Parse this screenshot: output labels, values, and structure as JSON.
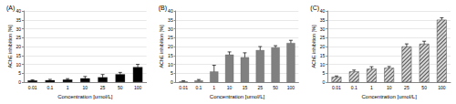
{
  "chart_data": [
    {
      "type": "bar",
      "title": "(A)",
      "categories": [
        "0.01",
        "0.1",
        "1",
        "10",
        "25",
        "50",
        "100"
      ],
      "values": [
        1.0,
        1.2,
        1.5,
        2.2,
        2.8,
        4.5,
        8.5
      ],
      "errors": [
        0.3,
        0.4,
        0.5,
        1.0,
        1.5,
        1.0,
        1.5
      ],
      "color": "#000000",
      "marker": "solid",
      "x_label": "Concentration [umol/L]",
      "y_label": "AChE inhibition [%]",
      "ylim": [
        0,
        40
      ],
      "yticks": [
        0,
        5,
        10,
        15,
        20,
        25,
        30,
        35,
        40
      ],
      "grid": true
    },
    {
      "type": "bar",
      "title": "(B)",
      "categories": [
        "0.01",
        "0.1",
        "1",
        "10",
        "15",
        "25",
        "50",
        "100"
      ],
      "values": [
        0.5,
        1.0,
        6.0,
        15.5,
        14.0,
        18.0,
        19.5,
        22.0
      ],
      "errors": [
        0.3,
        0.5,
        3.5,
        1.5,
        2.5,
        2.0,
        1.0,
        1.5
      ],
      "color": "#808080",
      "marker": "solid",
      "x_label": "Concentration [umol/L]",
      "y_label": "AChE inhibition [%]",
      "ylim": [
        0,
        40
      ],
      "yticks": [
        0,
        5,
        10,
        15,
        20,
        25,
        30,
        35,
        40
      ],
      "grid": true
    },
    {
      "type": "bar",
      "title": "(C)",
      "categories": [
        "0.01",
        "0.1",
        "1",
        "10",
        "25",
        "50",
        "100"
      ],
      "values": [
        3.0,
        6.0,
        7.5,
        8.0,
        20.0,
        21.5,
        35.0
      ],
      "errors": [
        0.5,
        0.8,
        1.2,
        0.8,
        1.5,
        1.5,
        1.2
      ],
      "color": "#d9d9d9",
      "marker": "hatch",
      "x_label": "Concentration [umol/L]",
      "y_label": "AChE inhibition [%]",
      "ylim": [
        0,
        40
      ],
      "yticks": [
        0,
        5,
        10,
        15,
        20,
        25,
        30,
        35,
        40
      ],
      "grid": true
    }
  ]
}
